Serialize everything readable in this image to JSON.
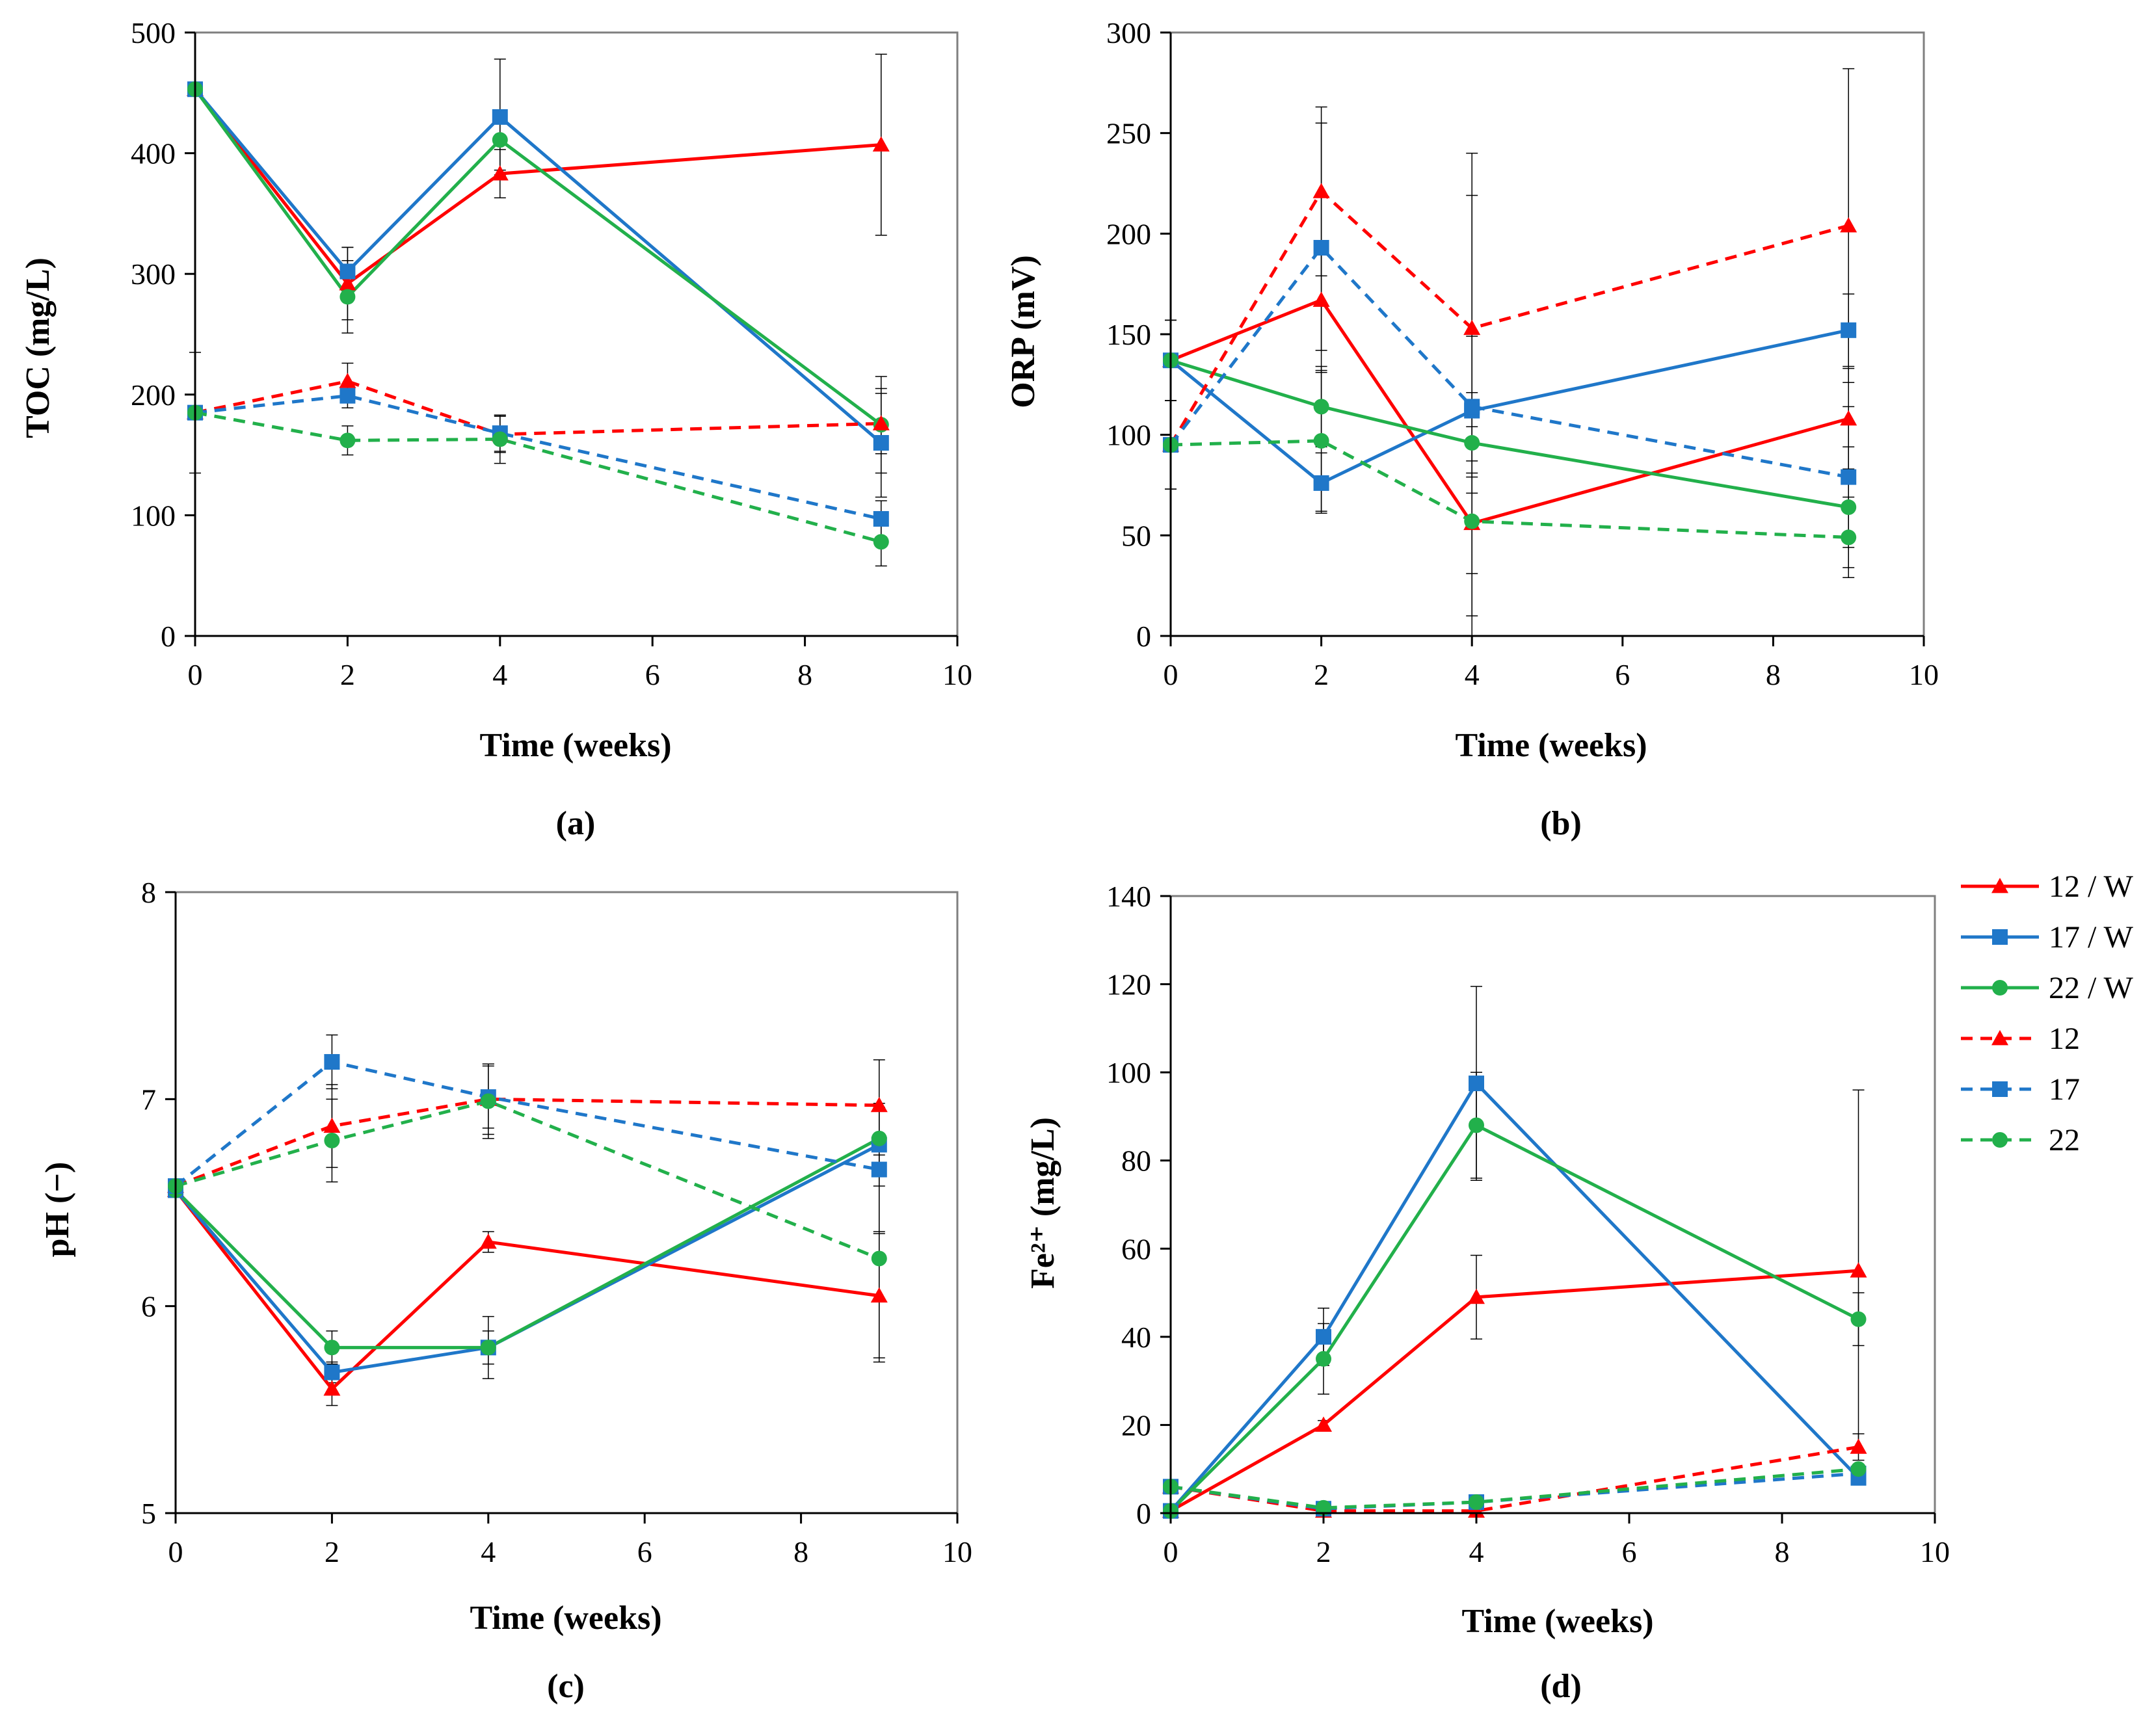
{
  "series_styles": {
    "12 / W": {
      "color": "#ff0000",
      "marker": "triangle",
      "dashed": false
    },
    "17 / W": {
      "color": "#1f77c9",
      "marker": "square",
      "dashed": false
    },
    "22 / W": {
      "color": "#22b04b",
      "marker": "circle",
      "dashed": false
    },
    "12": {
      "color": "#ff0000",
      "marker": "triangle",
      "dashed": true
    },
    "17": {
      "color": "#1f77c9",
      "marker": "square",
      "dashed": true
    },
    "22": {
      "color": "#22b04b",
      "marker": "circle",
      "dashed": true
    }
  },
  "legend": [
    "12 / W",
    "17 / W",
    "22 / W",
    "12",
    "17",
    "22"
  ],
  "chart_data": [
    {
      "type": "line",
      "id": "a",
      "panel_label": "(a)",
      "xlabel": "Time (weeks)",
      "ylabel": "TOC (mg/L)",
      "xlim": [
        0,
        10
      ],
      "ylim": [
        0,
        500
      ],
      "xticks": [
        0,
        2,
        4,
        6,
        8,
        10
      ],
      "yticks": [
        0,
        100,
        200,
        300,
        400,
        500
      ],
      "x": [
        0,
        2,
        4,
        9
      ],
      "series": [
        {
          "name": "12 / W",
          "values": [
            453,
            292,
            383,
            407
          ],
          "errors": [
            0,
            30,
            20,
            75
          ]
        },
        {
          "name": "17 / W",
          "values": [
            453,
            302,
            430,
            160
          ],
          "errors": [
            0,
            20,
            48,
            45
          ]
        },
        {
          "name": "22 / W",
          "values": [
            453,
            281,
            411,
            175
          ],
          "errors": [
            0,
            30,
            25,
            40
          ]
        },
        {
          "name": "12",
          "values": [
            185,
            211,
            167,
            176
          ],
          "errors": [
            50,
            15,
            15,
            25
          ]
        },
        {
          "name": "17",
          "values": [
            185,
            199,
            168,
            97
          ],
          "errors": [
            0,
            10,
            15,
            15
          ]
        },
        {
          "name": "22",
          "values": [
            185,
            162,
            163,
            78
          ],
          "errors": [
            0,
            12,
            20,
            20
          ]
        }
      ]
    },
    {
      "type": "line",
      "id": "b",
      "panel_label": "(b)",
      "xlabel": "Time (weeks)",
      "ylabel": "ORP (mV)",
      "xlim": [
        0,
        10
      ],
      "ylim": [
        0,
        300
      ],
      "xticks": [
        0,
        2,
        4,
        6,
        8,
        10
      ],
      "yticks": [
        0,
        50,
        100,
        150,
        200,
        250,
        300
      ],
      "x": [
        0,
        2,
        4,
        9
      ],
      "series": [
        {
          "name": "12 / W",
          "values": [
            137,
            167,
            56,
            108
          ],
          "errors": [
            20,
            25,
            25,
            25
          ]
        },
        {
          "name": "17 / W",
          "values": [
            137,
            76,
            112,
            152
          ],
          "errors": [
            20,
            15,
            128,
            18
          ]
        },
        {
          "name": "22 / W",
          "values": [
            137,
            114,
            96,
            64
          ],
          "errors": [
            20,
            20,
            25,
            30
          ]
        },
        {
          "name": "12",
          "values": [
            95,
            221,
            153,
            204
          ],
          "errors": [
            22,
            42,
            66,
            78
          ]
        },
        {
          "name": "17",
          "values": [
            95,
            193,
            114,
            79
          ],
          "errors": [
            22,
            62,
            35,
            35
          ]
        },
        {
          "name": "22",
          "values": [
            95,
            97,
            57,
            49
          ],
          "errors": [
            0,
            35,
            47,
            20
          ]
        }
      ]
    },
    {
      "type": "line",
      "id": "c",
      "panel_label": "(c)",
      "xlabel": "Time (weeks)",
      "ylabel": "pH (−)",
      "xlim": [
        0,
        10
      ],
      "ylim": [
        5,
        8
      ],
      "xticks": [
        0,
        2,
        4,
        6,
        8,
        10
      ],
      "yticks": [
        5,
        6,
        7,
        8
      ],
      "x": [
        0,
        2,
        4,
        9
      ],
      "series": [
        {
          "name": "12 / W",
          "values": [
            6.56,
            5.6,
            6.31,
            6.05
          ],
          "errors": [
            0.02,
            0.08,
            0.05,
            0.3
          ]
        },
        {
          "name": "17 / W",
          "values": [
            6.56,
            5.68,
            5.8,
            6.78
          ],
          "errors": [
            0.02,
            0.05,
            0.08,
            0.2
          ]
        },
        {
          "name": "22 / W",
          "values": [
            6.56,
            5.8,
            5.8,
            6.81
          ],
          "errors": [
            0.02,
            0.08,
            0.15,
            0.15
          ]
        },
        {
          "name": "12",
          "values": [
            6.58,
            6.87,
            7.0,
            6.97
          ],
          "errors": [
            0.02,
            0.2,
            0.17,
            0.22
          ]
        },
        {
          "name": "17",
          "values": [
            6.58,
            7.18,
            7.01,
            6.66
          ],
          "errors": [
            0.02,
            0.13,
            0.15,
            0.3
          ]
        },
        {
          "name": "22",
          "values": [
            6.58,
            6.8,
            6.99,
            6.23
          ],
          "errors": [
            0.02,
            0.2,
            0.18,
            0.5
          ]
        }
      ]
    },
    {
      "type": "line",
      "id": "d",
      "panel_label": "(d)",
      "xlabel": "Time (weeks)",
      "ylabel": "Fe²⁺ (mg/L)",
      "xlim": [
        0,
        10
      ],
      "ylim": [
        0,
        140
      ],
      "xticks": [
        0,
        2,
        4,
        6,
        8,
        10
      ],
      "yticks": [
        0,
        20,
        40,
        60,
        80,
        100,
        120,
        140
      ],
      "x": [
        0,
        2,
        4,
        9
      ],
      "series": [
        {
          "name": "12 / W",
          "values": [
            0.5,
            20,
            49,
            55
          ],
          "errors": [
            0,
            1,
            9.5,
            41
          ]
        },
        {
          "name": "17 / W",
          "values": [
            0.5,
            40,
            97.5,
            8
          ],
          "errors": [
            0,
            6.5,
            22,
            1
          ]
        },
        {
          "name": "22 / W",
          "values": [
            0.5,
            35,
            88,
            44
          ],
          "errors": [
            0,
            8,
            12,
            6
          ]
        },
        {
          "name": "12",
          "values": [
            6,
            0.5,
            0.5,
            15
          ],
          "errors": [
            1,
            0.5,
            0.5,
            3
          ]
        },
        {
          "name": "17",
          "values": [
            6,
            1,
            2.5,
            9
          ],
          "errors": [
            1,
            0.5,
            1,
            1
          ]
        },
        {
          "name": "22",
          "values": [
            6,
            1.2,
            2.5,
            10
          ],
          "errors": [
            1,
            0.5,
            1,
            1
          ]
        }
      ]
    }
  ]
}
